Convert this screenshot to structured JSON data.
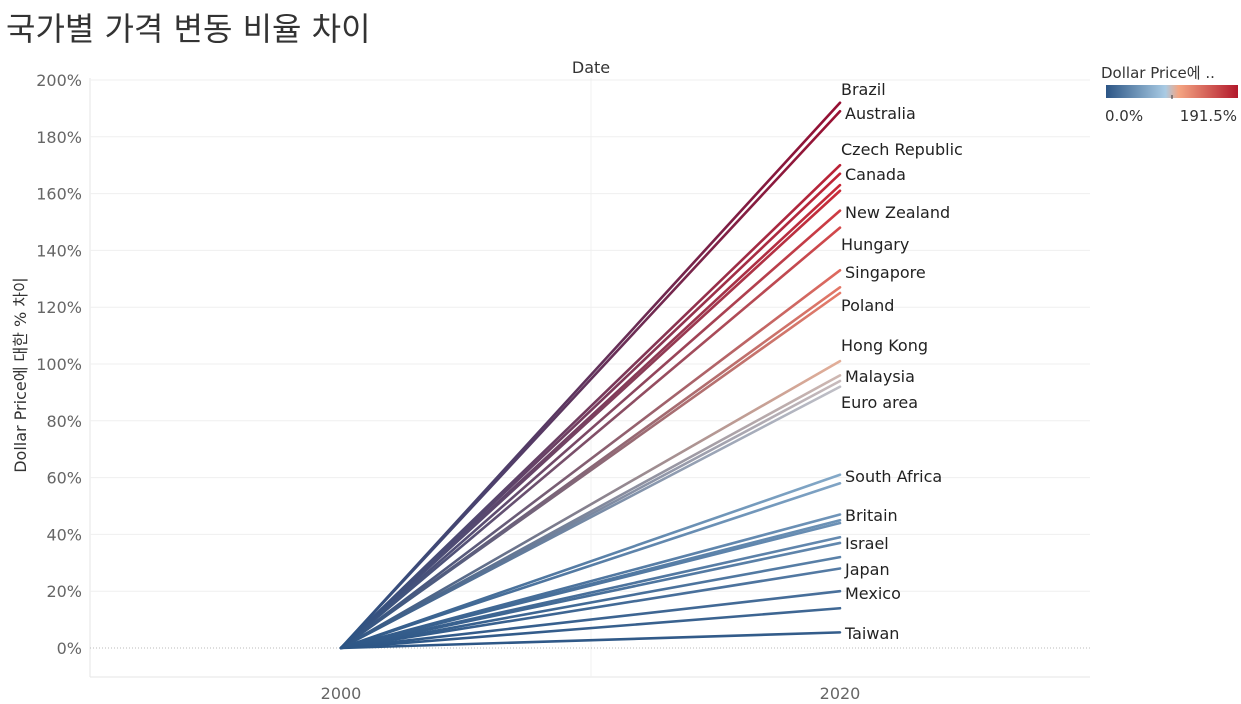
{
  "title": "국가별 가격 변동 비율 차이",
  "chart_data": {
    "type": "line",
    "title": "국가별 가격 변동 비율 차이",
    "column_header": "Date",
    "xlabel": "",
    "ylabel": "Dollar Price에 대한 % 차이",
    "x": [
      "2000",
      "2020"
    ],
    "y_ticks": [
      "0%",
      "20%",
      "40%",
      "60%",
      "80%",
      "100%",
      "120%",
      "140%",
      "160%",
      "180%",
      "200%"
    ],
    "ylim": [
      -10,
      203
    ],
    "grid": true,
    "legend": {
      "title": "Dollar Price에 ..",
      "min_label": "0.0%",
      "max_label": "191.5%",
      "min": 0,
      "max": 191.5,
      "placement": "top-right",
      "colors": [
        "#2c5585",
        "#a9cbe4",
        "#f4a582",
        "#b2182b"
      ]
    },
    "series": [
      {
        "name": "Brazil",
        "values": [
          0,
          192
        ],
        "label_shown": true
      },
      {
        "name": "Australia",
        "values": [
          0,
          189
        ],
        "label_shown": true
      },
      {
        "name": "Czech Republic",
        "values": [
          0,
          170
        ],
        "label_shown": true
      },
      {
        "name": "",
        "values": [
          0,
          167
        ],
        "label_shown": false
      },
      {
        "name": "Canada",
        "values": [
          0,
          163
        ],
        "label_shown": true
      },
      {
        "name": "",
        "values": [
          0,
          161
        ],
        "label_shown": false
      },
      {
        "name": "New Zealand",
        "values": [
          0,
          154
        ],
        "label_shown": true
      },
      {
        "name": "Hungary",
        "values": [
          0,
          148
        ],
        "label_shown": true
      },
      {
        "name": "Singapore",
        "values": [
          0,
          133
        ],
        "label_shown": true
      },
      {
        "name": "",
        "values": [
          0,
          127
        ],
        "label_shown": false
      },
      {
        "name": "Poland",
        "values": [
          0,
          125
        ],
        "label_shown": true
      },
      {
        "name": "Hong Kong",
        "values": [
          0,
          101
        ],
        "label_shown": true
      },
      {
        "name": "Malaysia",
        "values": [
          0,
          96
        ],
        "label_shown": true
      },
      {
        "name": "",
        "values": [
          0,
          94
        ],
        "label_shown": false
      },
      {
        "name": "Euro area",
        "values": [
          0,
          92
        ],
        "label_shown": true
      },
      {
        "name": "South Africa",
        "values": [
          0,
          61
        ],
        "label_shown": true
      },
      {
        "name": "",
        "values": [
          0,
          58
        ],
        "label_shown": false
      },
      {
        "name": "Britain",
        "values": [
          0,
          47
        ],
        "label_shown": true
      },
      {
        "name": "",
        "values": [
          0,
          45
        ],
        "label_shown": false
      },
      {
        "name": "",
        "values": [
          0,
          44
        ],
        "label_shown": false
      },
      {
        "name": "Israel",
        "values": [
          0,
          39
        ],
        "label_shown": true
      },
      {
        "name": "",
        "values": [
          0,
          37
        ],
        "label_shown": false
      },
      {
        "name": "Japan",
        "values": [
          0,
          32
        ],
        "label_shown": true
      },
      {
        "name": "",
        "values": [
          0,
          28
        ],
        "label_shown": false
      },
      {
        "name": "Mexico",
        "values": [
          0,
          20
        ],
        "label_shown": true
      },
      {
        "name": "",
        "values": [
          0,
          14
        ],
        "label_shown": false
      },
      {
        "name": "Taiwan",
        "values": [
          0,
          5.5
        ],
        "label_shown": true
      }
    ]
  }
}
